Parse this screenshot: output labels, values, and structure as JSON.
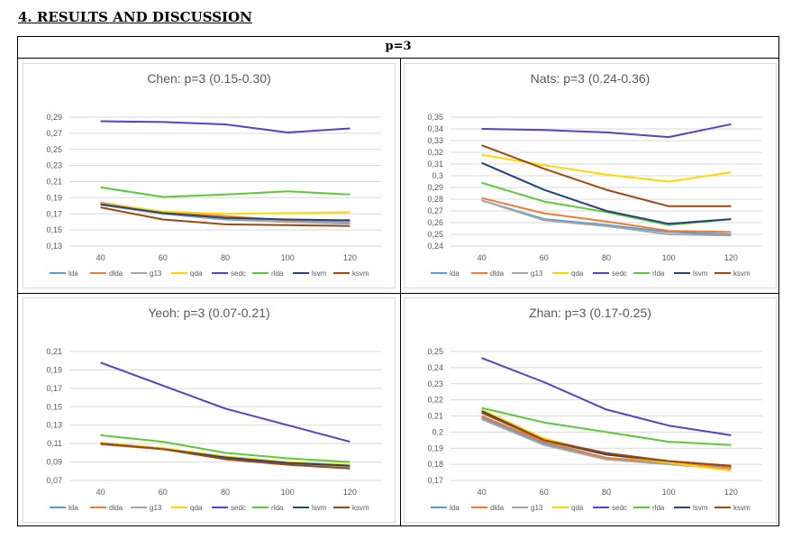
{
  "heading": "4. RESULTS AND DISCUSSION",
  "table_header": "p=3",
  "legend_items": [
    "lda",
    "dlda",
    "g13",
    "qda",
    "sedc",
    "rlda",
    "lsvm",
    "ksvm"
  ],
  "colors": {
    "lda": "#5b9bd5",
    "dlda": "#ed7d31",
    "g13": "#a5a5a5",
    "qda": "#ffd700",
    "sedc": "#5b3fc4",
    "rlda": "#5cc83a",
    "lsvm": "#264478",
    "ksvm": "#9e480e"
  },
  "chart_data": [
    {
      "type": "line",
      "title": "Chen: p=3 (0.15-0.30)",
      "x": [
        40,
        60,
        80,
        100,
        120
      ],
      "ylim": [
        0.13,
        0.29
      ],
      "yticks": [
        "0,13",
        "0,15",
        "0,17",
        "0,19",
        "0,21",
        "0,23",
        "0,25",
        "0,27",
        "0,29"
      ],
      "series": [
        {
          "name": "lda",
          "values": [
            0.182,
            0.17,
            0.163,
            0.16,
            0.158
          ]
        },
        {
          "name": "dlda",
          "values": [
            0.184,
            0.172,
            0.167,
            0.162,
            0.16
          ]
        },
        {
          "name": "g13",
          "values": [
            0.181,
            0.17,
            0.164,
            0.16,
            0.159
          ]
        },
        {
          "name": "qda",
          "values": [
            0.183,
            0.173,
            0.17,
            0.171,
            0.172
          ]
        },
        {
          "name": "sedc",
          "values": [
            0.285,
            0.284,
            0.281,
            0.271,
            0.276
          ]
        },
        {
          "name": "rlda",
          "values": [
            0.203,
            0.191,
            0.194,
            0.198,
            0.194
          ]
        },
        {
          "name": "lsvm",
          "values": [
            0.182,
            0.171,
            0.165,
            0.163,
            0.162
          ]
        },
        {
          "name": "ksvm",
          "values": [
            0.178,
            0.163,
            0.157,
            0.156,
            0.155
          ]
        }
      ]
    },
    {
      "type": "line",
      "title": "Nats: p=3 (0.24-0.36)",
      "x": [
        40,
        60,
        80,
        100,
        120
      ],
      "ylim": [
        0.24,
        0.35
      ],
      "yticks": [
        "0,24",
        "0,25",
        "0,26",
        "0,27",
        "0,28",
        "0,29",
        "0,3",
        "0,31",
        "0,32",
        "0,33",
        "0,34",
        "0,35"
      ],
      "series": [
        {
          "name": "lda",
          "values": [
            0.279,
            0.263,
            0.258,
            0.252,
            0.25
          ]
        },
        {
          "name": "dlda",
          "values": [
            0.281,
            0.268,
            0.261,
            0.253,
            0.252
          ]
        },
        {
          "name": "g13",
          "values": [
            0.279,
            0.262,
            0.257,
            0.25,
            0.249
          ]
        },
        {
          "name": "qda",
          "values": [
            0.318,
            0.309,
            0.301,
            0.295,
            0.303
          ]
        },
        {
          "name": "sedc",
          "values": [
            0.34,
            0.339,
            0.337,
            0.333,
            0.344
          ]
        },
        {
          "name": "rlda",
          "values": [
            0.294,
            0.278,
            0.269,
            0.258,
            0.263
          ]
        },
        {
          "name": "lsvm",
          "values": [
            0.311,
            0.288,
            0.27,
            0.259,
            0.263
          ]
        },
        {
          "name": "ksvm",
          "values": [
            0.326,
            0.306,
            0.288,
            0.274,
            0.274
          ]
        }
      ]
    },
    {
      "type": "line",
      "title": "Yeoh: p=3 (0.07-0.21)",
      "x": [
        40,
        60,
        80,
        100,
        120
      ],
      "ylim": [
        0.07,
        0.21
      ],
      "yticks": [
        "0,07",
        "0,09",
        "0,11",
        "0,13",
        "0,15",
        "0,17",
        "0,19",
        "0,21"
      ],
      "series": [
        {
          "name": "lda",
          "values": [
            0.11,
            0.104,
            0.095,
            0.088,
            0.085
          ]
        },
        {
          "name": "dlda",
          "values": [
            0.11,
            0.105,
            0.095,
            0.089,
            0.086
          ]
        },
        {
          "name": "g13",
          "values": [
            0.109,
            0.104,
            0.094,
            0.088,
            0.085
          ]
        },
        {
          "name": "qda",
          "values": [
            0.111,
            0.105,
            0.096,
            0.09,
            0.087
          ]
        },
        {
          "name": "sedc",
          "values": [
            0.198,
            0.173,
            0.148,
            0.13,
            0.112
          ]
        },
        {
          "name": "rlda",
          "values": [
            0.119,
            0.112,
            0.1,
            0.094,
            0.09
          ]
        },
        {
          "name": "lsvm",
          "values": [
            0.11,
            0.104,
            0.095,
            0.089,
            0.086
          ]
        },
        {
          "name": "ksvm",
          "values": [
            0.11,
            0.104,
            0.093,
            0.087,
            0.083
          ]
        }
      ]
    },
    {
      "type": "line",
      "title": "Zhan: p=3 (0.17-0.25)",
      "x": [
        40,
        60,
        80,
        100,
        120
      ],
      "ylim": [
        0.17,
        0.25
      ],
      "yticks": [
        "0,17",
        "0,18",
        "0,19",
        "0,2",
        "0,21",
        "0,22",
        "0,23",
        "0,24",
        "0,25"
      ],
      "series": [
        {
          "name": "lda",
          "values": [
            0.209,
            0.193,
            0.184,
            0.181,
            0.178
          ]
        },
        {
          "name": "dlda",
          "values": [
            0.21,
            0.194,
            0.184,
            0.181,
            0.178
          ]
        },
        {
          "name": "g13",
          "values": [
            0.208,
            0.192,
            0.183,
            0.18,
            0.177
          ]
        },
        {
          "name": "qda",
          "values": [
            0.214,
            0.196,
            0.186,
            0.181,
            0.176
          ]
        },
        {
          "name": "sedc",
          "values": [
            0.246,
            0.231,
            0.214,
            0.204,
            0.198
          ]
        },
        {
          "name": "rlda",
          "values": [
            0.215,
            0.206,
            0.2,
            0.194,
            0.192
          ]
        },
        {
          "name": "lsvm",
          "values": [
            0.213,
            0.195,
            0.186,
            0.182,
            0.179
          ]
        },
        {
          "name": "ksvm",
          "values": [
            0.212,
            0.195,
            0.187,
            0.182,
            0.179
          ]
        }
      ]
    }
  ]
}
